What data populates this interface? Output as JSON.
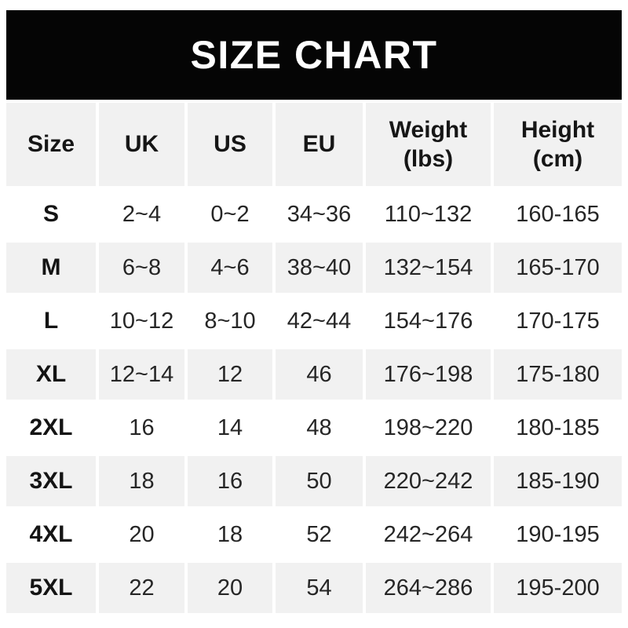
{
  "banner": {
    "title": "SIZE CHART",
    "bg_color": "#050505",
    "text_color": "#ffffff"
  },
  "table": {
    "columns": [
      {
        "label": "Size",
        "sub": ""
      },
      {
        "label": "UK",
        "sub": ""
      },
      {
        "label": "US",
        "sub": ""
      },
      {
        "label": "EU",
        "sub": ""
      },
      {
        "label": "Weight",
        "sub": "(lbs)"
      },
      {
        "label": "Height",
        "sub": "(cm)"
      }
    ],
    "rows": [
      {
        "size": "S",
        "uk": "2~4",
        "us": "0~2",
        "eu": "34~36",
        "weight": "110~132",
        "height": "160-165"
      },
      {
        "size": "M",
        "uk": "6~8",
        "us": "4~6",
        "eu": "38~40",
        "weight": "132~154",
        "height": "165-170"
      },
      {
        "size": "L",
        "uk": "10~12",
        "us": "8~10",
        "eu": "42~44",
        "weight": "154~176",
        "height": "170-175"
      },
      {
        "size": "XL",
        "uk": "12~14",
        "us": "12",
        "eu": "46",
        "weight": "176~198",
        "height": "175-180"
      },
      {
        "size": "2XL",
        "uk": "16",
        "us": "14",
        "eu": "48",
        "weight": "198~220",
        "height": "180-185"
      },
      {
        "size": "3XL",
        "uk": "18",
        "us": "16",
        "eu": "50",
        "weight": "220~242",
        "height": "185-190"
      },
      {
        "size": "4XL",
        "uk": "20",
        "us": "18",
        "eu": "52",
        "weight": "242~264",
        "height": "190-195"
      },
      {
        "size": "5XL",
        "uk": "22",
        "us": "20",
        "eu": "54",
        "weight": "264~286",
        "height": "195-200"
      }
    ],
    "colors": {
      "alt_row_bg": "#f1f1f1",
      "row_bg": "#ffffff",
      "data_text": "#262626",
      "bold_text": "#141414"
    }
  },
  "chart_data": {
    "type": "table",
    "title": "SIZE CHART",
    "columns": [
      "Size",
      "UK",
      "US",
      "EU",
      "Weight (lbs)",
      "Height (cm)"
    ],
    "rows": [
      [
        "S",
        "2~4",
        "0~2",
        "34~36",
        "110~132",
        "160-165"
      ],
      [
        "M",
        "6~8",
        "4~6",
        "38~40",
        "132~154",
        "165-170"
      ],
      [
        "L",
        "10~12",
        "8~10",
        "42~44",
        "154~176",
        "170-175"
      ],
      [
        "XL",
        "12~14",
        "12",
        "46",
        "176~198",
        "175-180"
      ],
      [
        "2XL",
        "16",
        "14",
        "48",
        "198~220",
        "180-185"
      ],
      [
        "3XL",
        "18",
        "16",
        "50",
        "220~242",
        "185-190"
      ],
      [
        "4XL",
        "20",
        "18",
        "52",
        "242~264",
        "190-195"
      ],
      [
        "5XL",
        "22",
        "20",
        "54",
        "264~286",
        "195-200"
      ]
    ],
    "layout_hints": {
      "banner_bg": "#050505",
      "alternating_row_shading": true,
      "shaded_rows": [
        "header",
        "M",
        "XL",
        "3XL",
        "5XL"
      ]
    }
  }
}
